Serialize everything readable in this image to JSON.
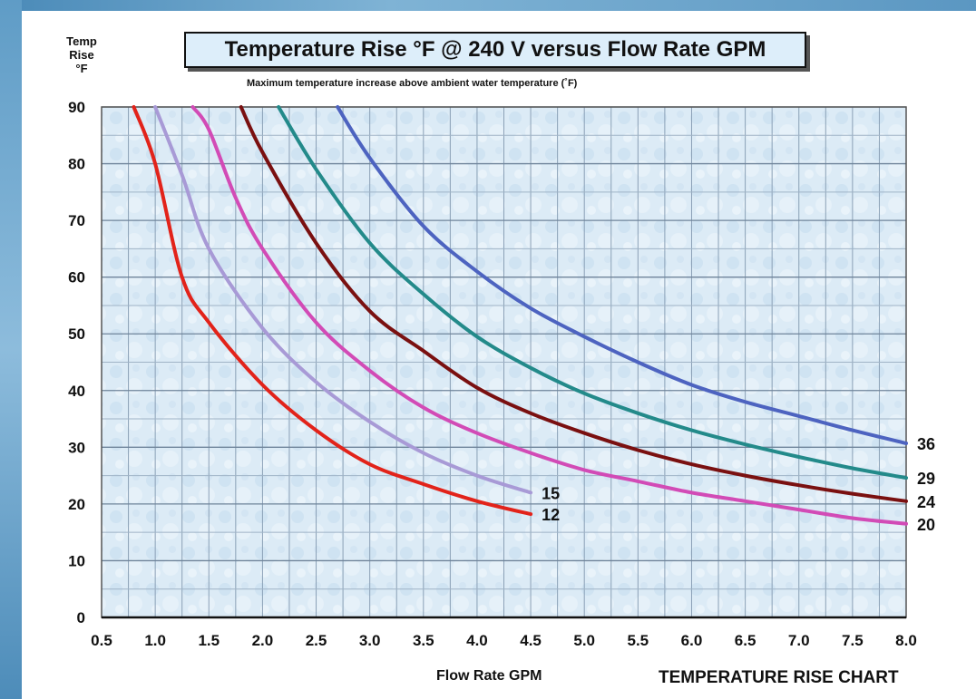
{
  "chart_data": {
    "type": "line",
    "title": "Temperature Rise °F @ 240 V versus Flow Rate GPM",
    "subtitle": "Maximum temperature increase above ambient water temperature (˚F)",
    "ylabel_lines": [
      "Temp",
      "Rise",
      "°F"
    ],
    "xlabel": "Flow Rate GPM",
    "caption": "TEMPERATURE RISE CHART",
    "xlim": [
      0.5,
      8.0
    ],
    "ylim": [
      0,
      90
    ],
    "grid": true,
    "x_ticks": [
      "0.5",
      "1.0",
      "1.5",
      "2.0",
      "2.5",
      "3.0",
      "3.5",
      "4.0",
      "4.5",
      "5.0",
      "5.5",
      "6.0",
      "6.5",
      "7.0",
      "7.5",
      "8.0"
    ],
    "y_ticks": [
      "0",
      "10",
      "20",
      "30",
      "40",
      "50",
      "60",
      "70",
      "80",
      "90"
    ],
    "series": [
      {
        "name": "12",
        "color": "#e2231a",
        "x": [
          0.8,
          1.0,
          1.25,
          1.5,
          2.0,
          2.5,
          3.0,
          3.5,
          4.0,
          4.5
        ],
        "y": [
          90,
          80,
          60,
          52,
          41,
          33,
          27,
          23.5,
          20.5,
          18.2
        ]
      },
      {
        "name": "15",
        "color": "#a89ad6",
        "x": [
          1.0,
          1.25,
          1.5,
          2.0,
          2.5,
          3.0,
          3.5,
          4.0,
          4.5
        ],
        "y": [
          90,
          78,
          65,
          51,
          41.5,
          34.5,
          29,
          25,
          22
        ]
      },
      {
        "name": "20",
        "color": "#d24bb6",
        "x": [
          1.35,
          1.5,
          1.75,
          2.0,
          2.5,
          3.0,
          3.5,
          4.0,
          4.5,
          5.0,
          5.5,
          6.0,
          6.5,
          7.0,
          7.5,
          8.0
        ],
        "y": [
          90,
          86,
          74,
          65,
          52,
          43.5,
          37,
          32.5,
          29,
          26,
          24,
          22,
          20.5,
          19,
          17.5,
          16.5
        ]
      },
      {
        "name": "24",
        "color": "#7a1010",
        "x": [
          1.8,
          2.0,
          2.5,
          3.0,
          3.5,
          4.0,
          4.5,
          5.0,
          5.5,
          6.0,
          6.5,
          7.0,
          7.5,
          8.0
        ],
        "y": [
          90,
          82,
          66,
          54,
          47,
          40.5,
          36,
          32.5,
          29.5,
          27,
          25,
          23.3,
          21.8,
          20.5
        ]
      },
      {
        "name": "29",
        "color": "#238a8a",
        "x": [
          2.15,
          2.5,
          3.0,
          3.5,
          4.0,
          4.5,
          5.0,
          5.5,
          6.0,
          6.5,
          7.0,
          7.5,
          8.0
        ],
        "y": [
          90,
          79,
          66,
          57,
          49.5,
          44,
          39.5,
          36,
          33,
          30.5,
          28.3,
          26.3,
          24.6
        ]
      },
      {
        "name": "36",
        "color": "#4d63c0",
        "x": [
          2.7,
          3.0,
          3.5,
          4.0,
          4.5,
          5.0,
          5.5,
          6.0,
          6.5,
          7.0,
          7.5,
          8.0
        ],
        "y": [
          90,
          81,
          69,
          61,
          54.5,
          49.5,
          45,
          41,
          38,
          35.5,
          33,
          30.7
        ]
      }
    ]
  }
}
